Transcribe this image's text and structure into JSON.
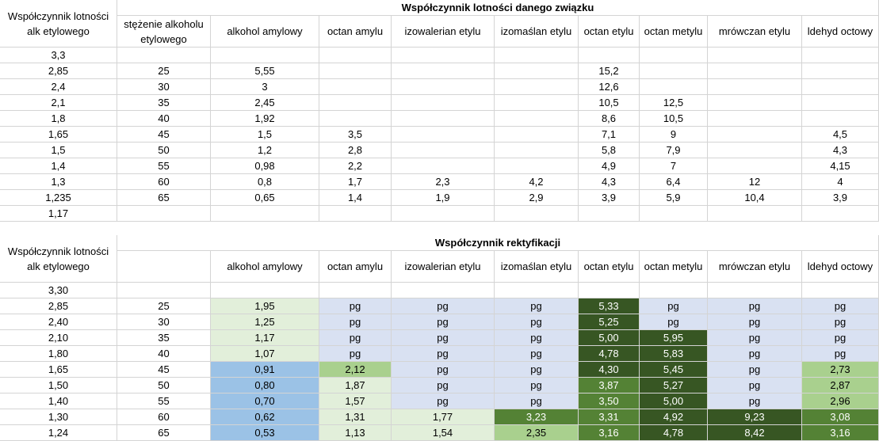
{
  "top": {
    "title": "Współczynnik lotności danego związku",
    "header": [
      "Współczynnik lotności alk etylowego",
      "stężenie alkoholu etylowego",
      "alkohol amylowy",
      "octan amylu",
      "izowalerian etylu",
      "izomaślan etylu",
      "octan etylu",
      "octan metylu",
      "mrówczan etylu",
      "ldehyd octowy"
    ],
    "rows": [
      [
        "3,3",
        "",
        "",
        "",
        "",
        "",
        "",
        "",
        "",
        ""
      ],
      [
        "2,85",
        "25",
        "5,55",
        "",
        "",
        "",
        "15,2",
        "",
        "",
        ""
      ],
      [
        "2,4",
        "30",
        "3",
        "",
        "",
        "",
        "12,6",
        "",
        "",
        ""
      ],
      [
        "2,1",
        "35",
        "2,45",
        "",
        "",
        "",
        "10,5",
        "12,5",
        "",
        ""
      ],
      [
        "1,8",
        "40",
        "1,92",
        "",
        "",
        "",
        "8,6",
        "10,5",
        "",
        ""
      ],
      [
        "1,65",
        "45",
        "1,5",
        "3,5",
        "",
        "",
        "7,1",
        "9",
        "",
        "4,5"
      ],
      [
        "1,5",
        "50",
        "1,2",
        "2,8",
        "",
        "",
        "5,8",
        "7,9",
        "",
        "4,3"
      ],
      [
        "1,4",
        "55",
        "0,98",
        "2,2",
        "",
        "",
        "4,9",
        "7",
        "",
        "4,15"
      ],
      [
        "1,3",
        "60",
        "0,8",
        "1,7",
        "2,3",
        "4,2",
        "4,3",
        "6,4",
        "12",
        "4"
      ],
      [
        "1,235",
        "65",
        "0,65",
        "1,4",
        "1,9",
        "2,9",
        "3,9",
        "5,9",
        "10,4",
        "3,9"
      ],
      [
        "1,17",
        "",
        "",
        "",
        "",
        "",
        "",
        "",
        "",
        ""
      ]
    ]
  },
  "bottom": {
    "title": "Współczynnik rektyfikacji",
    "header": [
      "Współczynnik lotności alk etylowego",
      "",
      "alkohol amylowy",
      "octan amylu",
      "izowalerian etylu",
      "izomaślan etylu",
      "octan etylu",
      "octan metylu",
      "mrówczan etylu",
      "ldehyd octowy"
    ],
    "rows": [
      [
        "3,30",
        "",
        "",
        "",
        "",
        "",
        "",
        "",
        "",
        ""
      ],
      [
        "2,85",
        "25",
        "1,95",
        "pg",
        "pg",
        "pg",
        "5,33",
        "pg",
        "pg",
        "pg"
      ],
      [
        "2,40",
        "30",
        "1,25",
        "pg",
        "pg",
        "pg",
        "5,25",
        "pg",
        "pg",
        "pg"
      ],
      [
        "2,10",
        "35",
        "1,17",
        "pg",
        "pg",
        "pg",
        "5,00",
        "5,95",
        "pg",
        "pg"
      ],
      [
        "1,80",
        "40",
        "1,07",
        "pg",
        "pg",
        "pg",
        "4,78",
        "5,83",
        "pg",
        "pg"
      ],
      [
        "1,65",
        "45",
        "0,91",
        "2,12",
        "pg",
        "pg",
        "4,30",
        "5,45",
        "pg",
        "2,73"
      ],
      [
        "1,50",
        "50",
        "0,80",
        "1,87",
        "pg",
        "pg",
        "3,87",
        "5,27",
        "pg",
        "2,87"
      ],
      [
        "1,40",
        "55",
        "0,70",
        "1,57",
        "pg",
        "pg",
        "3,50",
        "5,00",
        "pg",
        "2,96"
      ],
      [
        "1,30",
        "60",
        "0,62",
        "1,31",
        "1,77",
        "3,23",
        "3,31",
        "4,92",
        "9,23",
        "3,08"
      ],
      [
        "1,24",
        "65",
        "0,53",
        "1,13",
        "1,54",
        "2,35",
        "3,16",
        "4,78",
        "8,42",
        "3,16"
      ]
    ],
    "fills": [
      [
        "w",
        "w",
        "w",
        "w",
        "w",
        "w",
        "w",
        "w",
        "w",
        "w"
      ],
      [
        "w",
        "w",
        "lg",
        "lb",
        "lb",
        "lb",
        "dg",
        "lb",
        "lb",
        "lb"
      ],
      [
        "w",
        "w",
        "lg",
        "lb",
        "lb",
        "lb",
        "dg",
        "lb",
        "lb",
        "lb"
      ],
      [
        "w",
        "w",
        "lg",
        "lb",
        "lb",
        "lb",
        "dg",
        "dg",
        "lb",
        "lb"
      ],
      [
        "w",
        "w",
        "lg",
        "lb",
        "lb",
        "lb",
        "dg",
        "dg",
        "lb",
        "lb"
      ],
      [
        "w",
        "w",
        "bl",
        "mg",
        "lb",
        "lb",
        "dg",
        "dg",
        "lb",
        "mg"
      ],
      [
        "w",
        "w",
        "bl",
        "lg",
        "lb",
        "lb",
        "g",
        "dg",
        "lb",
        "mg"
      ],
      [
        "w",
        "w",
        "bl",
        "lg",
        "lb",
        "lb",
        "g",
        "dg",
        "lb",
        "mg"
      ],
      [
        "w",
        "w",
        "bl",
        "lg",
        "lg",
        "g",
        "g",
        "dg",
        "dg",
        "g"
      ],
      [
        "w",
        "w",
        "bl",
        "lg",
        "lg",
        "mg",
        "g",
        "dg",
        "dg",
        "g"
      ]
    ]
  },
  "colors": {
    "w": "#ffffff",
    "lg": "#e2efda",
    "lb": "#d9e1f2",
    "bl": "#9bc2e6",
    "mg": "#a9d08e",
    "g": "#548235",
    "dg": "#375623"
  }
}
